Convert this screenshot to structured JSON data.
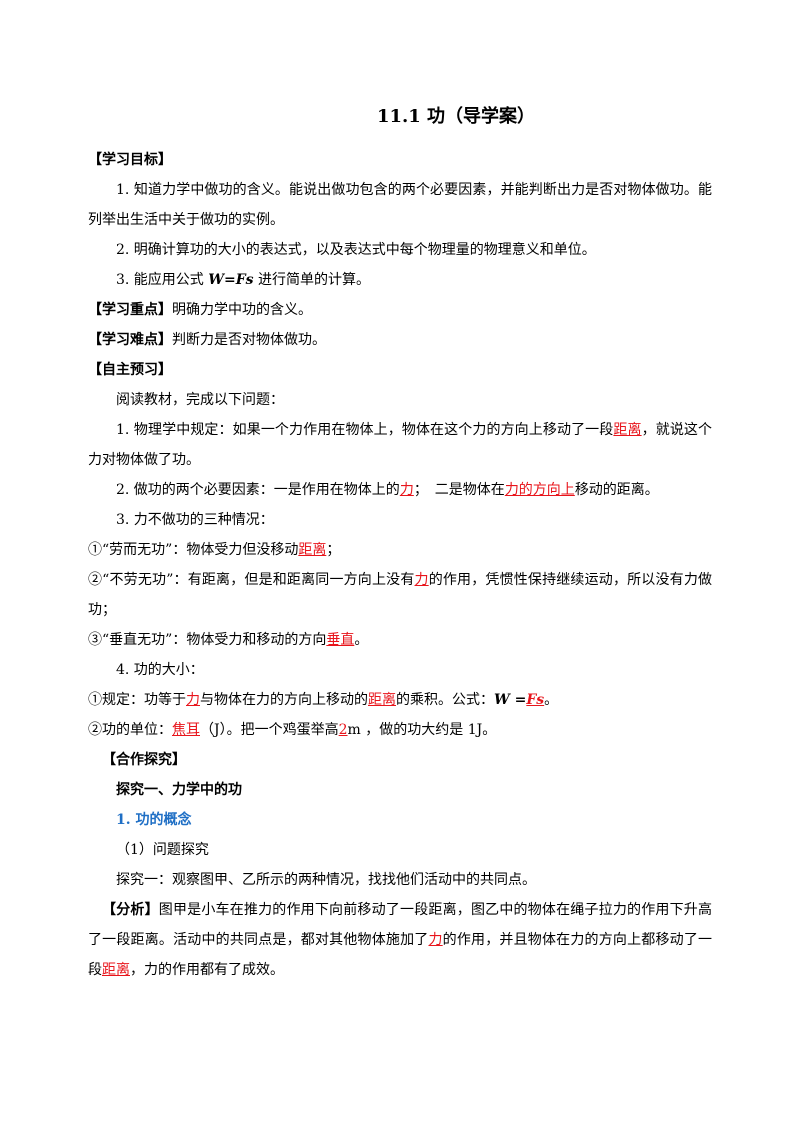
{
  "title": "11.1 功（导学案）",
  "paragraphs": [
    [
      "【学习目标】"
    ],
    [
      "1. 知道力学中做功的含义。能说出做功包含的两个必要因素，并能判断出力是否对物体做功。能列举出生活中关于做功的实例。"
    ],
    [
      "2. 明确计算功的大小的表达式，以及表达式中每个物理量的物理意义和单位。"
    ],
    [
      "3. 能应用公式 ",
      "W=Fs",
      " 进行简单的计算。"
    ],
    [
      "【学习重点】",
      "明确力学中功的含义。"
    ],
    [
      "【学习难点】",
      "判断力是否对物体做功。"
    ],
    [
      "【自主预习】"
    ],
    [
      "阅读教材，完成以下问题："
    ],
    [
      "1. 物理学中规定：如果一个力作用在物体上，物体在这个力的方向上移动了一段",
      "距离",
      "，就说这个力对物体做了功。"
    ],
    [
      "2. 做功的两个必要因素：一是作用在物体上的",
      "力",
      "；　二是物体在",
      "力的方向上",
      "移动的距离。"
    ],
    [
      "3. 力不做功的三种情况："
    ],
    [
      "①“劳而无功”：物体受力但没移动",
      "距离",
      "；"
    ],
    [
      "②“不劳无功”：有距离，但是和距离同一方向上没有",
      "力",
      "的作用，凭惯性保持继续运动，所以没有力做功；"
    ],
    [
      "③“垂直无功”：物体受力和移动的方向",
      "垂直",
      "。"
    ],
    [
      "4. 功的大小："
    ],
    [
      "①规定：功等于",
      "力",
      "与物体在力的方向上移动的",
      "距离",
      "的乘积。公式：",
      "W =",
      "Fs",
      "。"
    ],
    [
      "②功的单位：",
      "焦耳",
      "（J）。把一个鸡蛋举高",
      "2",
      "m ，做的功大约是 1J。"
    ],
    [
      "【合作探究】"
    ],
    [
      "探究一、力学中的功"
    ],
    [
      "1. 功的概念"
    ],
    [
      "（1）问题探究"
    ],
    [
      "探究一：观察图甲、乙所示的两种情况，找找他们活动中的共同点。"
    ],
    [
      "【分析】",
      "图甲是小车在推力的作用下向前移动了一段距离，图乙中的物体在绳子拉力的作用下升高了一段距离。活动中的共同点是，都对其他物体施加了",
      "力",
      "的作用，并且物体在力的方向上都移动了一段",
      "距离",
      "，力的作用都有了成效。"
    ]
  ]
}
